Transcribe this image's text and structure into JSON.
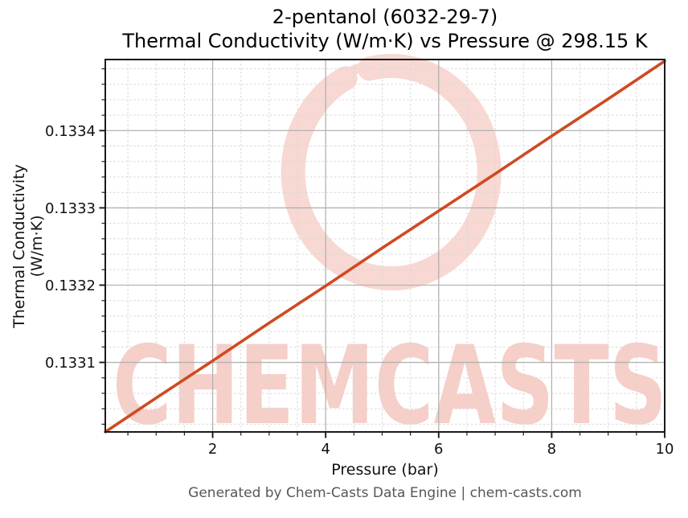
{
  "header": {
    "title_line1": "2-pentanol (6032-29-7)",
    "title_line2": "Thermal Conductivity (W/m·K) vs Pressure @ 298.15 K"
  },
  "footer": {
    "text": "Generated by Chem-Casts Data Engine | chem-casts.com"
  },
  "watermark": {
    "text": "CHEMCASTS",
    "logo": "brush-ring-logo",
    "ring_color": "#f8d8d2",
    "text_color": "#f5cfc8"
  },
  "chart_data": {
    "type": "line",
    "title": "2-pentanol (6032-29-7) — Thermal Conductivity (W/m·K) vs Pressure @ 298.15 K",
    "xlabel": "Pressure (bar)",
    "ylabel": "Thermal Conductivity (W/m·K)",
    "xlim": [
      0.1,
      10
    ],
    "ylim": [
      0.13301,
      0.133492
    ],
    "xticks": [
      2,
      4,
      6,
      8,
      10
    ],
    "yticks": [
      0.1331,
      0.1332,
      0.1333,
      0.1334
    ],
    "ytick_decimals": 4,
    "x_minor_step": 0.5,
    "y_minor_step": 2e-05,
    "grid": true,
    "legend": "none",
    "line_color": "#cf4a22",
    "major_grid_color": "#b2b2b2",
    "minor_grid_color": "#d9d9d9",
    "axis_color": "#1a1a1a",
    "series": [
      {
        "name": "Thermal Conductivity (W/m·K)",
        "x": [
          0.1,
          1,
          2,
          3,
          4,
          5,
          6,
          7,
          8,
          9,
          10
        ],
        "y": [
          0.13301,
          0.133054,
          0.133102,
          0.133151,
          0.133199,
          0.133248,
          0.133296,
          0.133344,
          0.133393,
          0.133441,
          0.13349
        ]
      }
    ]
  }
}
